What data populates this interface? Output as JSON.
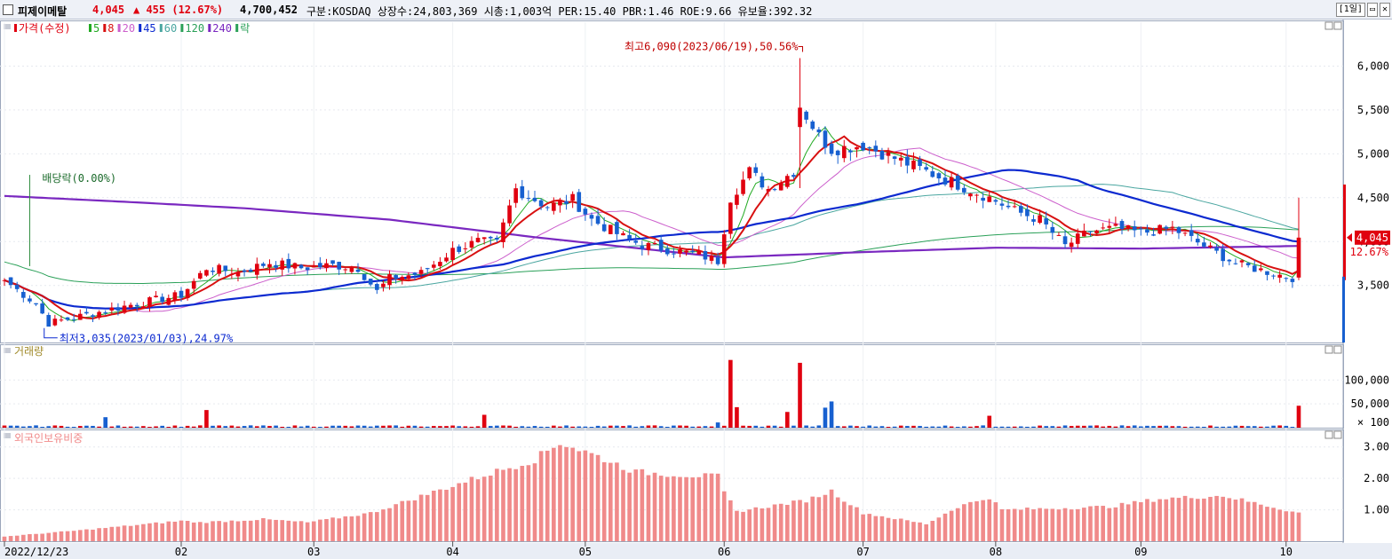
{
  "titlebar": {
    "name": "피제이메탈",
    "price": "4,045",
    "change": "▲ 455 (12.67%)",
    "volume": "4,700,452",
    "info": "구분:KOSDAQ 상장수:24,803,369 시총:1,003억 PER:15.40 PBR:1.46 ROE:9.66 유보율:392.32",
    "period_button": "[1일]",
    "window_buttons": [
      "▭",
      "✕"
    ]
  },
  "colors": {
    "up": "#e0000f",
    "down": "#1760d0",
    "ma5": "#22aa22",
    "ma8": "#d81010",
    "ma20": "#cc5fcc",
    "ma45": "#0c2ad0",
    "ma60": "#4aa6a0",
    "ma120": "#2aa058",
    "ma240": "#7a28c0",
    "foreign": "#f08a8a"
  },
  "chart_data": [
    {
      "type": "candlestick",
      "title": "",
      "legend": [
        {
          "label": "가격(수정)",
          "color": "#e0000f"
        },
        {
          "label": "5",
          "color": "#22aa22"
        },
        {
          "label": "8",
          "color": "#d81010"
        },
        {
          "label": "20",
          "color": "#cc5fcc"
        },
        {
          "label": "45",
          "color": "#0c2ad0"
        },
        {
          "label": "60",
          "color": "#4aa6a0"
        },
        {
          "label": "120",
          "color": "#2aa058"
        },
        {
          "label": "240",
          "color": "#7a28c0"
        },
        {
          "label": "락",
          "color": "#2aa058"
        }
      ],
      "ylim": [
        2850,
        6500
      ],
      "yticks": [
        3500,
        4000,
        4500,
        5000,
        5500,
        6000
      ],
      "ytick_labels": [
        "3,500",
        "4,000",
        "4,500",
        "5,000",
        "5,500",
        "6,000"
      ],
      "x_start": "2022-12-23",
      "x_end": "2023-10-06",
      "xticks": [
        {
          "date": "2022-12-23",
          "label": "2022/12/23"
        },
        {
          "date": "2023-02-01",
          "label": "02"
        },
        {
          "date": "2023-03-02",
          "label": "03"
        },
        {
          "date": "2023-04-03",
          "label": "04"
        },
        {
          "date": "2023-05-02",
          "label": "05"
        },
        {
          "date": "2023-06-01",
          "label": "06"
        },
        {
          "date": "2023-07-03",
          "label": "07"
        },
        {
          "date": "2023-08-01",
          "label": "08"
        },
        {
          "date": "2023-09-01",
          "label": "09"
        },
        {
          "date": "2023-10-04",
          "label": "10"
        }
      ],
      "anchors": [
        [
          "2022-12-23",
          3560
        ],
        [
          "2022-12-30",
          3290
        ],
        [
          "2023-01-03",
          3070
        ],
        [
          "2023-01-10",
          3150
        ],
        [
          "2023-01-20",
          3280
        ],
        [
          "2023-02-01",
          3390
        ],
        [
          "2023-02-07",
          3700
        ],
        [
          "2023-02-14",
          3650
        ],
        [
          "2023-02-21",
          3760
        ],
        [
          "2023-02-28",
          3700
        ],
        [
          "2023-03-07",
          3730
        ],
        [
          "2023-03-13",
          3700
        ],
        [
          "2023-03-16",
          3430
        ],
        [
          "2023-03-20",
          3580
        ],
        [
          "2023-03-27",
          3640
        ],
        [
          "2023-04-03",
          3900
        ],
        [
          "2023-04-07",
          4000
        ],
        [
          "2023-04-12",
          3980
        ],
        [
          "2023-04-17",
          4600
        ],
        [
          "2023-04-24",
          4400
        ],
        [
          "2023-04-28",
          4480
        ],
        [
          "2023-05-03",
          4250
        ],
        [
          "2023-05-10",
          4050
        ],
        [
          "2023-05-15",
          3960
        ],
        [
          "2023-05-22",
          3900
        ],
        [
          "2023-05-26",
          3850
        ],
        [
          "2023-05-31",
          3780
        ],
        [
          "2023-06-02",
          4500
        ],
        [
          "2023-06-07",
          4800
        ],
        [
          "2023-06-12",
          4600
        ],
        [
          "2023-06-16",
          4800
        ],
        [
          "2023-06-19",
          5550
        ],
        [
          "2023-06-22",
          5200
        ],
        [
          "2023-06-26",
          5050
        ],
        [
          "2023-07-03",
          5100
        ],
        [
          "2023-07-10",
          4950
        ],
        [
          "2023-07-17",
          4800
        ],
        [
          "2023-07-24",
          4650
        ],
        [
          "2023-07-31",
          4500
        ],
        [
          "2023-08-04",
          4350
        ],
        [
          "2023-08-10",
          4250
        ],
        [
          "2023-08-16",
          3950
        ],
        [
          "2023-08-22",
          4120
        ],
        [
          "2023-08-28",
          4150
        ],
        [
          "2023-09-01",
          4100
        ],
        [
          "2023-09-08",
          4150
        ],
        [
          "2023-09-15",
          3950
        ],
        [
          "2023-09-22",
          3750
        ],
        [
          "2023-10-04",
          3600
        ],
        [
          "2023-10-05",
          3590
        ],
        [
          "2023-10-06",
          4045
        ]
      ],
      "ma240": [
        [
          "2022-12-23",
          4520
        ],
        [
          "2023-01-20",
          4450
        ],
        [
          "2023-02-15",
          4380
        ],
        [
          "2023-03-20",
          4250
        ],
        [
          "2023-04-20",
          4050
        ],
        [
          "2023-05-20",
          3880
        ],
        [
          "2023-06-01",
          3820
        ],
        [
          "2023-07-01",
          3880
        ],
        [
          "2023-08-01",
          3930
        ],
        [
          "2023-09-01",
          3920
        ],
        [
          "2023-10-06",
          3950
        ]
      ],
      "annotations": [
        {
          "text": "최고6,090(2023/06/19),50.56%",
          "date": "2023-06-19",
          "value": 6090,
          "kind": "high"
        },
        {
          "text": "최저3,035(2023/01/03),24.97%",
          "date": "2023-01-03",
          "value": 3035,
          "kind": "low"
        },
        {
          "text": "배당락(0.00%)",
          "date": "2022-12-29",
          "value": 4720,
          "kind": "event"
        }
      ],
      "last_price_label": "4,045",
      "last_change_label": "12.67%"
    },
    {
      "type": "bar",
      "title": "거래량",
      "ylim": [
        0,
        160000
      ],
      "yticks": [
        50000,
        100000
      ],
      "ytick_labels": [
        "50,000",
        "100,000"
      ],
      "unit_label": "× 100",
      "spikes": [
        [
          "2023-06-02",
          142000,
          "up"
        ],
        [
          "2023-06-05",
          43000,
          "up"
        ],
        [
          "2023-06-19",
          136000,
          "up"
        ],
        [
          "2023-06-26",
          55000,
          "up"
        ],
        [
          "2023-06-23",
          42000,
          "up"
        ],
        [
          "2023-10-06",
          46000,
          "up"
        ],
        [
          "2023-02-07",
          37000,
          "down"
        ],
        [
          "2023-04-10",
          27000,
          "up"
        ],
        [
          "2023-07-31",
          25000,
          "down"
        ],
        [
          "2023-06-15",
          33000,
          "down"
        ],
        [
          "2023-05-31",
          11000,
          "up"
        ],
        [
          "2023-01-16",
          22000,
          "up"
        ]
      ],
      "base_volume": 3500
    },
    {
      "type": "bar",
      "title": "외국인보유비중",
      "ylim": [
        0,
        3.5
      ],
      "yticks": [
        1.0,
        2.0,
        3.0
      ],
      "ytick_labels": [
        "1.00",
        "2.00",
        "3.00"
      ],
      "anchors": [
        [
          "2022-12-23",
          0.15
        ],
        [
          "2023-01-10",
          0.35
        ],
        [
          "2023-02-01",
          0.65
        ],
        [
          "2023-02-05",
          0.6
        ],
        [
          "2023-02-20",
          0.7
        ],
        [
          "2023-03-01",
          0.6
        ],
        [
          "2023-03-15",
          0.9
        ],
        [
          "2023-03-28",
          1.5
        ],
        [
          "2023-04-10",
          2.1
        ],
        [
          "2023-04-20",
          2.6
        ],
        [
          "2023-04-26",
          3.15
        ],
        [
          "2023-05-04",
          2.7
        ],
        [
          "2023-05-12",
          2.2
        ],
        [
          "2023-05-31",
          2.05
        ],
        [
          "2023-06-01",
          1.55
        ],
        [
          "2023-06-05",
          0.95
        ],
        [
          "2023-06-20",
          1.3
        ],
        [
          "2023-06-26",
          1.6
        ],
        [
          "2023-07-03",
          0.9
        ],
        [
          "2023-07-17",
          0.55
        ],
        [
          "2023-07-24",
          1.1
        ],
        [
          "2023-07-31",
          1.4
        ],
        [
          "2023-08-02",
          1.0
        ],
        [
          "2023-08-25",
          1.1
        ],
        [
          "2023-09-06",
          1.35
        ],
        [
          "2023-09-20",
          1.45
        ],
        [
          "2023-10-06",
          0.9
        ]
      ]
    }
  ]
}
